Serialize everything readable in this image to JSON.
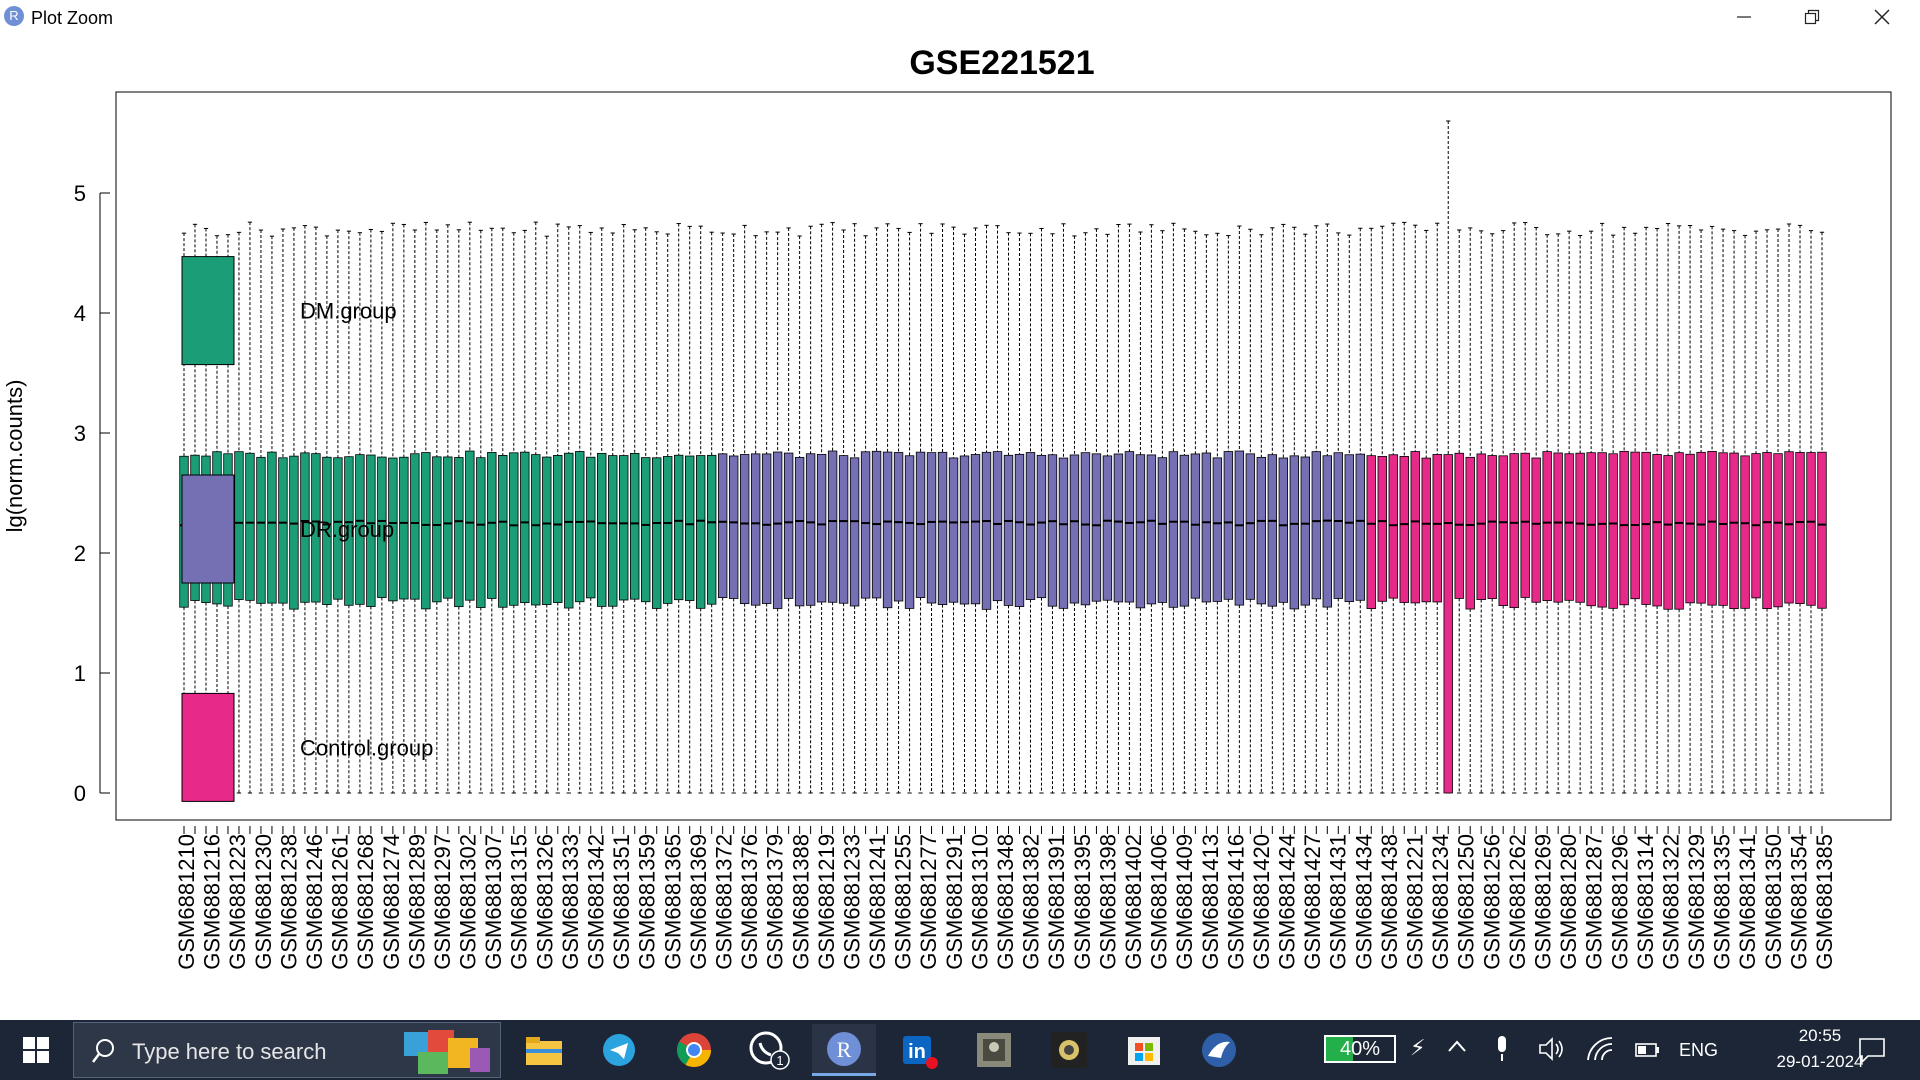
{
  "window": {
    "title": "Plot Zoom",
    "app_icon_letter": "R",
    "controls": [
      "minimize",
      "restore",
      "close"
    ]
  },
  "chart_data": {
    "type": "box",
    "title": "GSE221521",
    "xlabel": "",
    "ylabel": "lg(norm.counts)",
    "ylim": [
      0,
      5.6
    ],
    "yticks": [
      0,
      1,
      2,
      3,
      4,
      5
    ],
    "grid": false,
    "legend": {
      "position": "left",
      "entries": [
        {
          "label": "DM.group",
          "color": "#1b9e77"
        },
        {
          "label": "DR.group",
          "color": "#7570b3"
        },
        {
          "label": "Control.group",
          "color": "#e7298a"
        }
      ]
    },
    "groups": [
      {
        "name": "DM.group",
        "color": "#1b9e77",
        "count": 49
      },
      {
        "name": "DR.group",
        "color": "#7570b3",
        "count": 59
      },
      {
        "name": "Control.group",
        "color": "#e7298a",
        "count": 42
      }
    ],
    "box_stats_typical": {
      "min": 0,
      "q1": 1.58,
      "median": 2.25,
      "q3": 2.82,
      "max": 4.7
    },
    "notable_boxes": [
      {
        "index": 115,
        "min": 0,
        "q1": 0,
        "median": 2.25,
        "q3": 2.82,
        "max": 5.6
      }
    ],
    "tick_labels": [
      "GSM6881210",
      "GSM6881216",
      "GSM6881223",
      "GSM6881230",
      "GSM6881238",
      "GSM6881246",
      "GSM6881261",
      "GSM6881268",
      "GSM6881274",
      "GSM6881289",
      "GSM6881297",
      "GSM6881302",
      "GSM6881307",
      "GSM6881315",
      "GSM6881326",
      "GSM6881333",
      "GSM6881342",
      "GSM6881351",
      "GSM6881359",
      "GSM6881365",
      "GSM6881369",
      "GSM6881372",
      "GSM6881376",
      "GSM6881379",
      "GSM6881388",
      "GSM6881219",
      "GSM6881233",
      "GSM6881241",
      "GSM6881255",
      "GSM6881277",
      "GSM6881291",
      "GSM6881310",
      "GSM6881348",
      "GSM6881382",
      "GSM6881391",
      "GSM6881395",
      "GSM6881398",
      "GSM6881402",
      "GSM6881406",
      "GSM6881409",
      "GSM6881413",
      "GSM6881416",
      "GSM6881420",
      "GSM6881424",
      "GSM6881427",
      "GSM6881431",
      "GSM6881434",
      "GSM6881438",
      "GSM6881221",
      "GSM6881234",
      "GSM6881250",
      "GSM6881256",
      "GSM6881262",
      "GSM6881269",
      "GSM6881280",
      "GSM6881287",
      "GSM6881296",
      "GSM6881314",
      "GSM6881322",
      "GSM6881329",
      "GSM6881335",
      "GSM6881341",
      "GSM6881350",
      "GSM6881354",
      "GSM6881385"
    ]
  },
  "taskbar": {
    "search_placeholder": "Type here to search",
    "apps": [
      {
        "name": "file-explorer"
      },
      {
        "name": "telegram"
      },
      {
        "name": "chrome"
      },
      {
        "name": "whatsapp",
        "badge": "1"
      },
      {
        "name": "r-gui"
      },
      {
        "name": "linkedin"
      },
      {
        "name": "app-photo"
      },
      {
        "name": "app-dark"
      },
      {
        "name": "microsoft-store"
      },
      {
        "name": "app-bird"
      }
    ],
    "battery": "40%",
    "battery_level": 0.4,
    "language": "ENG",
    "time": "20:55",
    "date": "29-01-2024"
  }
}
